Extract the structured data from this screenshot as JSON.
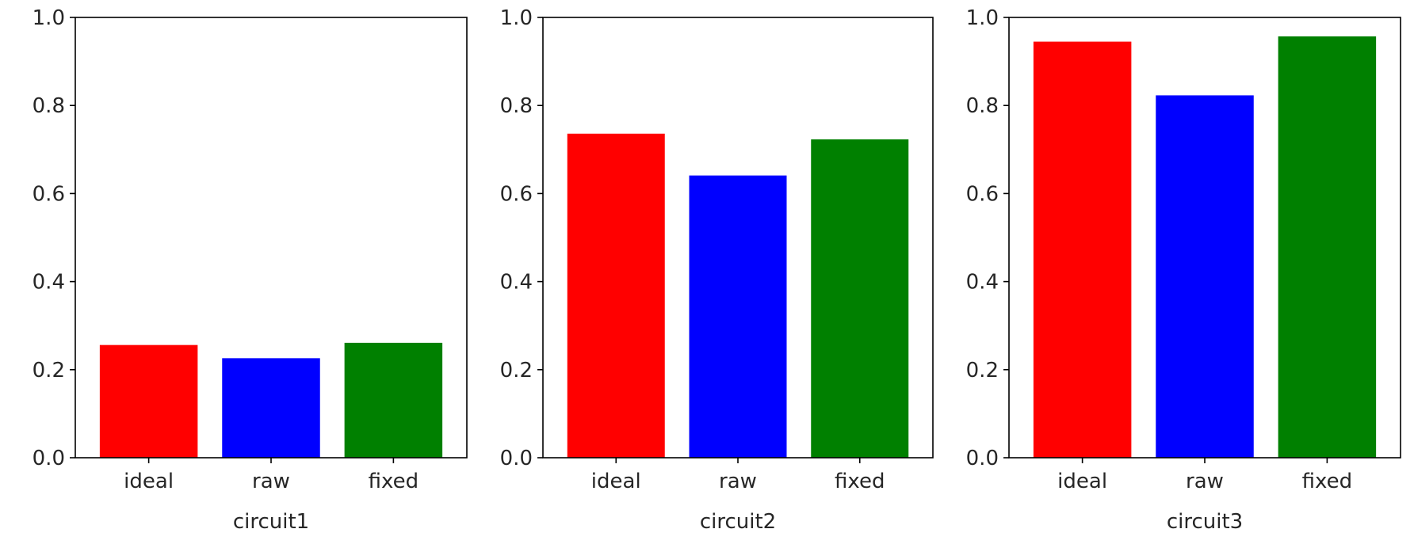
{
  "chart_data": [
    {
      "type": "bar",
      "categories": [
        "ideal",
        "raw",
        "fixed"
      ],
      "values": [
        0.256,
        0.226,
        0.261
      ],
      "colors": [
        "#ff0000",
        "#0000ff",
        "#008000"
      ],
      "xlabel": "circuit1",
      "ylabel": "",
      "ylim": [
        0,
        1.0
      ],
      "yticks": [
        "0.0",
        "0.2",
        "0.4",
        "0.6",
        "0.8",
        "1.0"
      ],
      "grid": false
    },
    {
      "type": "bar",
      "categories": [
        "ideal",
        "raw",
        "fixed"
      ],
      "values": [
        0.736,
        0.641,
        0.723
      ],
      "colors": [
        "#ff0000",
        "#0000ff",
        "#008000"
      ],
      "xlabel": "circuit2",
      "ylabel": "",
      "ylim": [
        0,
        1.0
      ],
      "yticks": [
        "0.0",
        "0.2",
        "0.4",
        "0.6",
        "0.8",
        "1.0"
      ],
      "grid": false
    },
    {
      "type": "bar",
      "categories": [
        "ideal",
        "raw",
        "fixed"
      ],
      "values": [
        0.945,
        0.823,
        0.957
      ],
      "colors": [
        "#ff0000",
        "#0000ff",
        "#008000"
      ],
      "xlabel": "circuit3",
      "ylabel": "",
      "ylim": [
        0,
        1.0
      ],
      "yticks": [
        "0.0",
        "0.2",
        "0.4",
        "0.6",
        "0.8",
        "1.0"
      ],
      "grid": false
    }
  ]
}
